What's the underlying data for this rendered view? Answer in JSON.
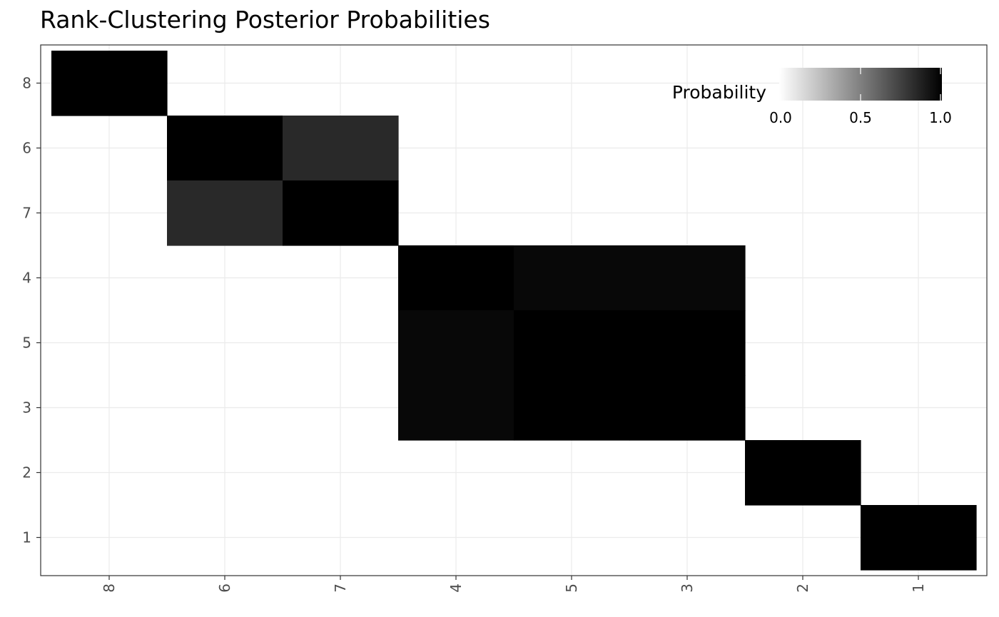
{
  "chart_data": {
    "type": "heatmap",
    "title": "Rank-Clustering Posterior Probabilities",
    "x_categories": [
      "8",
      "6",
      "7",
      "4",
      "5",
      "3",
      "2",
      "1"
    ],
    "y_categories": [
      "8",
      "6",
      "7",
      "4",
      "5",
      "3",
      "2",
      "1"
    ],
    "values": [
      [
        1.0,
        0.0,
        0.0,
        0.0,
        0.0,
        0.0,
        0.0,
        0.0
      ],
      [
        0.0,
        1.0,
        0.84,
        0.0,
        0.0,
        0.0,
        0.0,
        0.0
      ],
      [
        0.0,
        0.84,
        1.0,
        0.0,
        0.0,
        0.0,
        0.0,
        0.0
      ],
      [
        0.0,
        0.0,
        0.0,
        1.0,
        0.97,
        0.97,
        0.0,
        0.0
      ],
      [
        0.0,
        0.0,
        0.0,
        0.97,
        1.0,
        1.0,
        0.0,
        0.0
      ],
      [
        0.0,
        0.0,
        0.0,
        0.97,
        1.0,
        1.0,
        0.0,
        0.0
      ],
      [
        0.0,
        0.0,
        0.0,
        0.0,
        0.0,
        0.0,
        1.0,
        0.0
      ],
      [
        0.0,
        0.0,
        0.0,
        0.0,
        0.0,
        0.0,
        0.0,
        1.0
      ]
    ],
    "color_scale": {
      "low": "#ffffff",
      "high": "#000000",
      "limits": [
        0,
        1
      ]
    },
    "legend": {
      "title": "Probability",
      "ticks": [
        "0.0",
        "0.5",
        "1.0"
      ],
      "tick_values": [
        0.0,
        0.5,
        1.0
      ],
      "position": "top-right"
    },
    "grid": true,
    "xlabel": "",
    "ylabel": ""
  }
}
